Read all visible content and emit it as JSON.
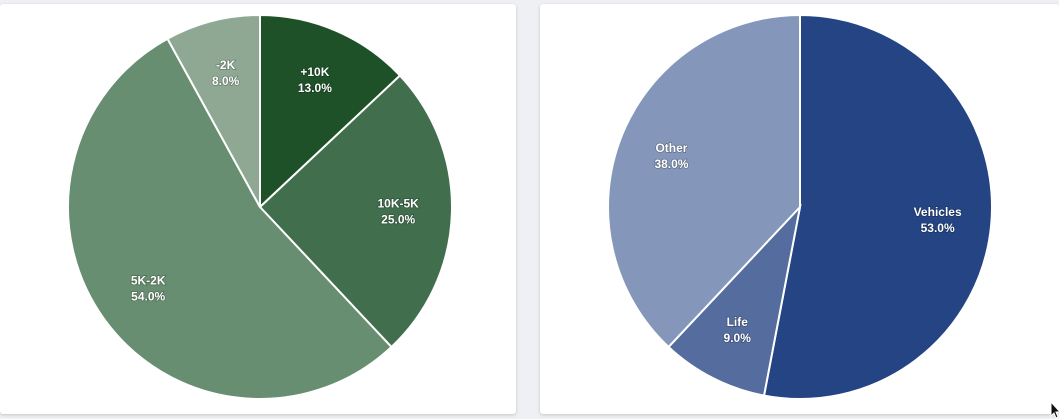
{
  "chart_data": [
    {
      "type": "pie",
      "start_angle_deg": 0,
      "direction": "clockwise",
      "slices": [
        {
          "label": "+10K",
          "percent": 13.0,
          "color": "#1f5128"
        },
        {
          "label": "10K-5K",
          "percent": 25.0,
          "color": "#416e4c"
        },
        {
          "label": "5K-2K",
          "percent": 54.0,
          "color": "#688e71"
        },
        {
          "label": "-2K",
          "percent": 8.0,
          "color": "#8ea893"
        }
      ]
    },
    {
      "type": "pie",
      "start_angle_deg": 0,
      "direction": "clockwise",
      "slices": [
        {
          "label": "Vehicles",
          "percent": 53.0,
          "color": "#244484"
        },
        {
          "label": "Life",
          "percent": 9.0,
          "color": "#546c9e"
        },
        {
          "label": "Other",
          "percent": 38.0,
          "color": "#8497ba"
        }
      ]
    }
  ]
}
